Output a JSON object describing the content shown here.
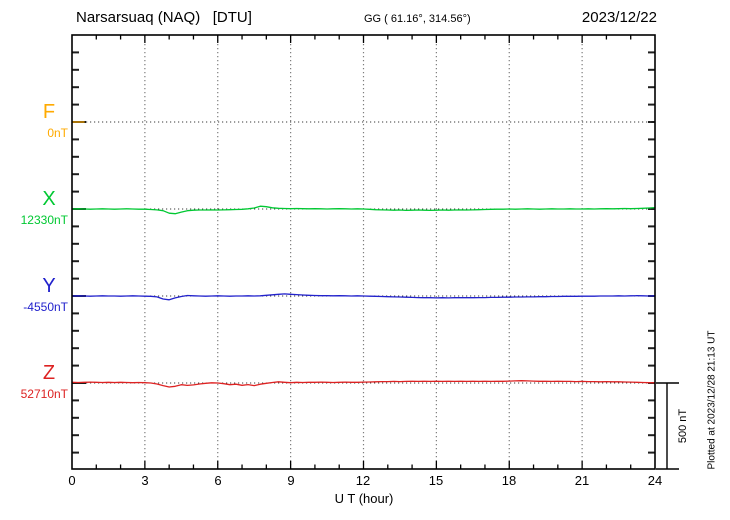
{
  "chart_data": {
    "type": "line",
    "title": "Narsarsuaq (NAQ)   [DTU]",
    "subtitle": "GG ( 61.16°, 314.56°)",
    "date": "2023/12/22",
    "xlabel": "U T (hour)",
    "x_range_hours": [
      0,
      24
    ],
    "x_tick_labels": [
      "0",
      "3",
      "6",
      "9",
      "12",
      "15",
      "18",
      "21",
      "24"
    ],
    "x_minor_tick_hours": 1,
    "x_major_tick_hours": 3,
    "y_tick_interval_nT": 100,
    "trace_separation_nT": 500,
    "sample_step_hours": 0.25,
    "grid": "vertical dotted lines every 3 h; dotted horizontal baseline per trace",
    "legend_position": "left margin",
    "annotations": {
      "scale_bar": "500 nT",
      "plotted_at": "Plotted at 2023/12/28 21:13 UT"
    },
    "series": [
      {
        "id": "F",
        "label": "F",
        "baseline_label": "0nT",
        "baseline_nT": 0,
        "color": "#FFAA00",
        "plotted_hours": [
          0,
          0.5
        ],
        "offsets_nT": [
          0,
          0,
          0
        ]
      },
      {
        "id": "X",
        "label": "X",
        "baseline_label": "12330nT",
        "baseline_nT": 12330,
        "color": "#00C832",
        "plotted_hours": [
          0,
          24
        ],
        "offsets_nT": [
          0,
          1,
          0,
          -1,
          0,
          1,
          0,
          -1,
          0,
          1,
          0,
          -1,
          -1,
          -3,
          -5,
          -10,
          -24,
          -27,
          -18,
          -10,
          -7,
          -6,
          -6,
          -5,
          -6,
          -5,
          -4,
          -3,
          -2,
          1,
          6,
          16,
          13,
          7,
          4,
          3,
          2,
          3,
          2,
          1,
          2,
          1,
          0,
          1,
          2,
          1,
          0,
          1,
          0,
          -2,
          -4,
          -5,
          -6,
          -7,
          -6,
          -8,
          -7,
          -6,
          -7,
          -8,
          -7,
          -6,
          -7,
          -6,
          -5,
          -6,
          -5,
          -4,
          -3,
          -2,
          -1,
          -1,
          0,
          -1,
          0,
          1,
          0,
          -1,
          0,
          1,
          0,
          0,
          1,
          0,
          0,
          1,
          0,
          1,
          2,
          1,
          2,
          3,
          2,
          3,
          4,
          6,
          8
        ]
      },
      {
        "id": "Y",
        "label": "Y",
        "baseline_label": "-4550nT",
        "baseline_nT": -4550,
        "color": "#2222CC",
        "plotted_hours": [
          0,
          24
        ],
        "offsets_nT": [
          0,
          1,
          0,
          -1,
          0,
          1,
          0,
          0,
          -1,
          0,
          1,
          0,
          -1,
          -2,
          -5,
          -17,
          -22,
          -11,
          -3,
          3,
          1,
          0,
          -1,
          0,
          1,
          0,
          -1,
          0,
          0,
          1,
          0,
          1,
          4,
          7,
          10,
          12,
          10,
          8,
          6,
          4,
          3,
          2,
          2,
          1,
          2,
          1,
          0,
          1,
          0,
          -1,
          -2,
          -3,
          -4,
          -5,
          -6,
          -7,
          -8,
          -9,
          -10,
          -10,
          -11,
          -10,
          -11,
          -10,
          -10,
          -9,
          -10,
          -9,
          -9,
          -8,
          -8,
          -7,
          -7,
          -6,
          -6,
          -5,
          -5,
          -4,
          -4,
          -3,
          -3,
          -2,
          -2,
          -2,
          -1,
          -1,
          -1,
          0,
          0,
          0,
          1,
          0,
          1,
          2,
          1,
          0,
          1
        ]
      },
      {
        "id": "Z",
        "label": "Z",
        "baseline_label": "52710nT",
        "baseline_nT": 52710,
        "color": "#DD2222",
        "plotted_hours": [
          0,
          24
        ],
        "offsets_nT": [
          4,
          3,
          4,
          5,
          4,
          3,
          4,
          3,
          4,
          3,
          2,
          3,
          2,
          0,
          -6,
          -15,
          -23,
          -19,
          -10,
          -14,
          -11,
          -6,
          -2,
          1,
          0,
          -4,
          -10,
          -7,
          -13,
          -9,
          -15,
          -7,
          -2,
          3,
          7,
          4,
          2,
          4,
          3,
          4,
          4,
          5,
          4,
          3,
          4,
          5,
          4,
          4,
          5,
          6,
          7,
          8,
          8,
          9,
          8,
          9,
          10,
          9,
          10,
          9,
          10,
          9,
          10,
          9,
          10,
          9,
          10,
          9,
          10,
          9,
          10,
          10,
          11,
          12,
          13,
          12,
          11,
          10,
          10,
          9,
          10,
          9,
          9,
          8,
          9,
          8,
          8,
          7,
          8,
          7,
          7,
          6,
          5,
          4,
          3,
          2,
          1
        ]
      }
    ]
  }
}
